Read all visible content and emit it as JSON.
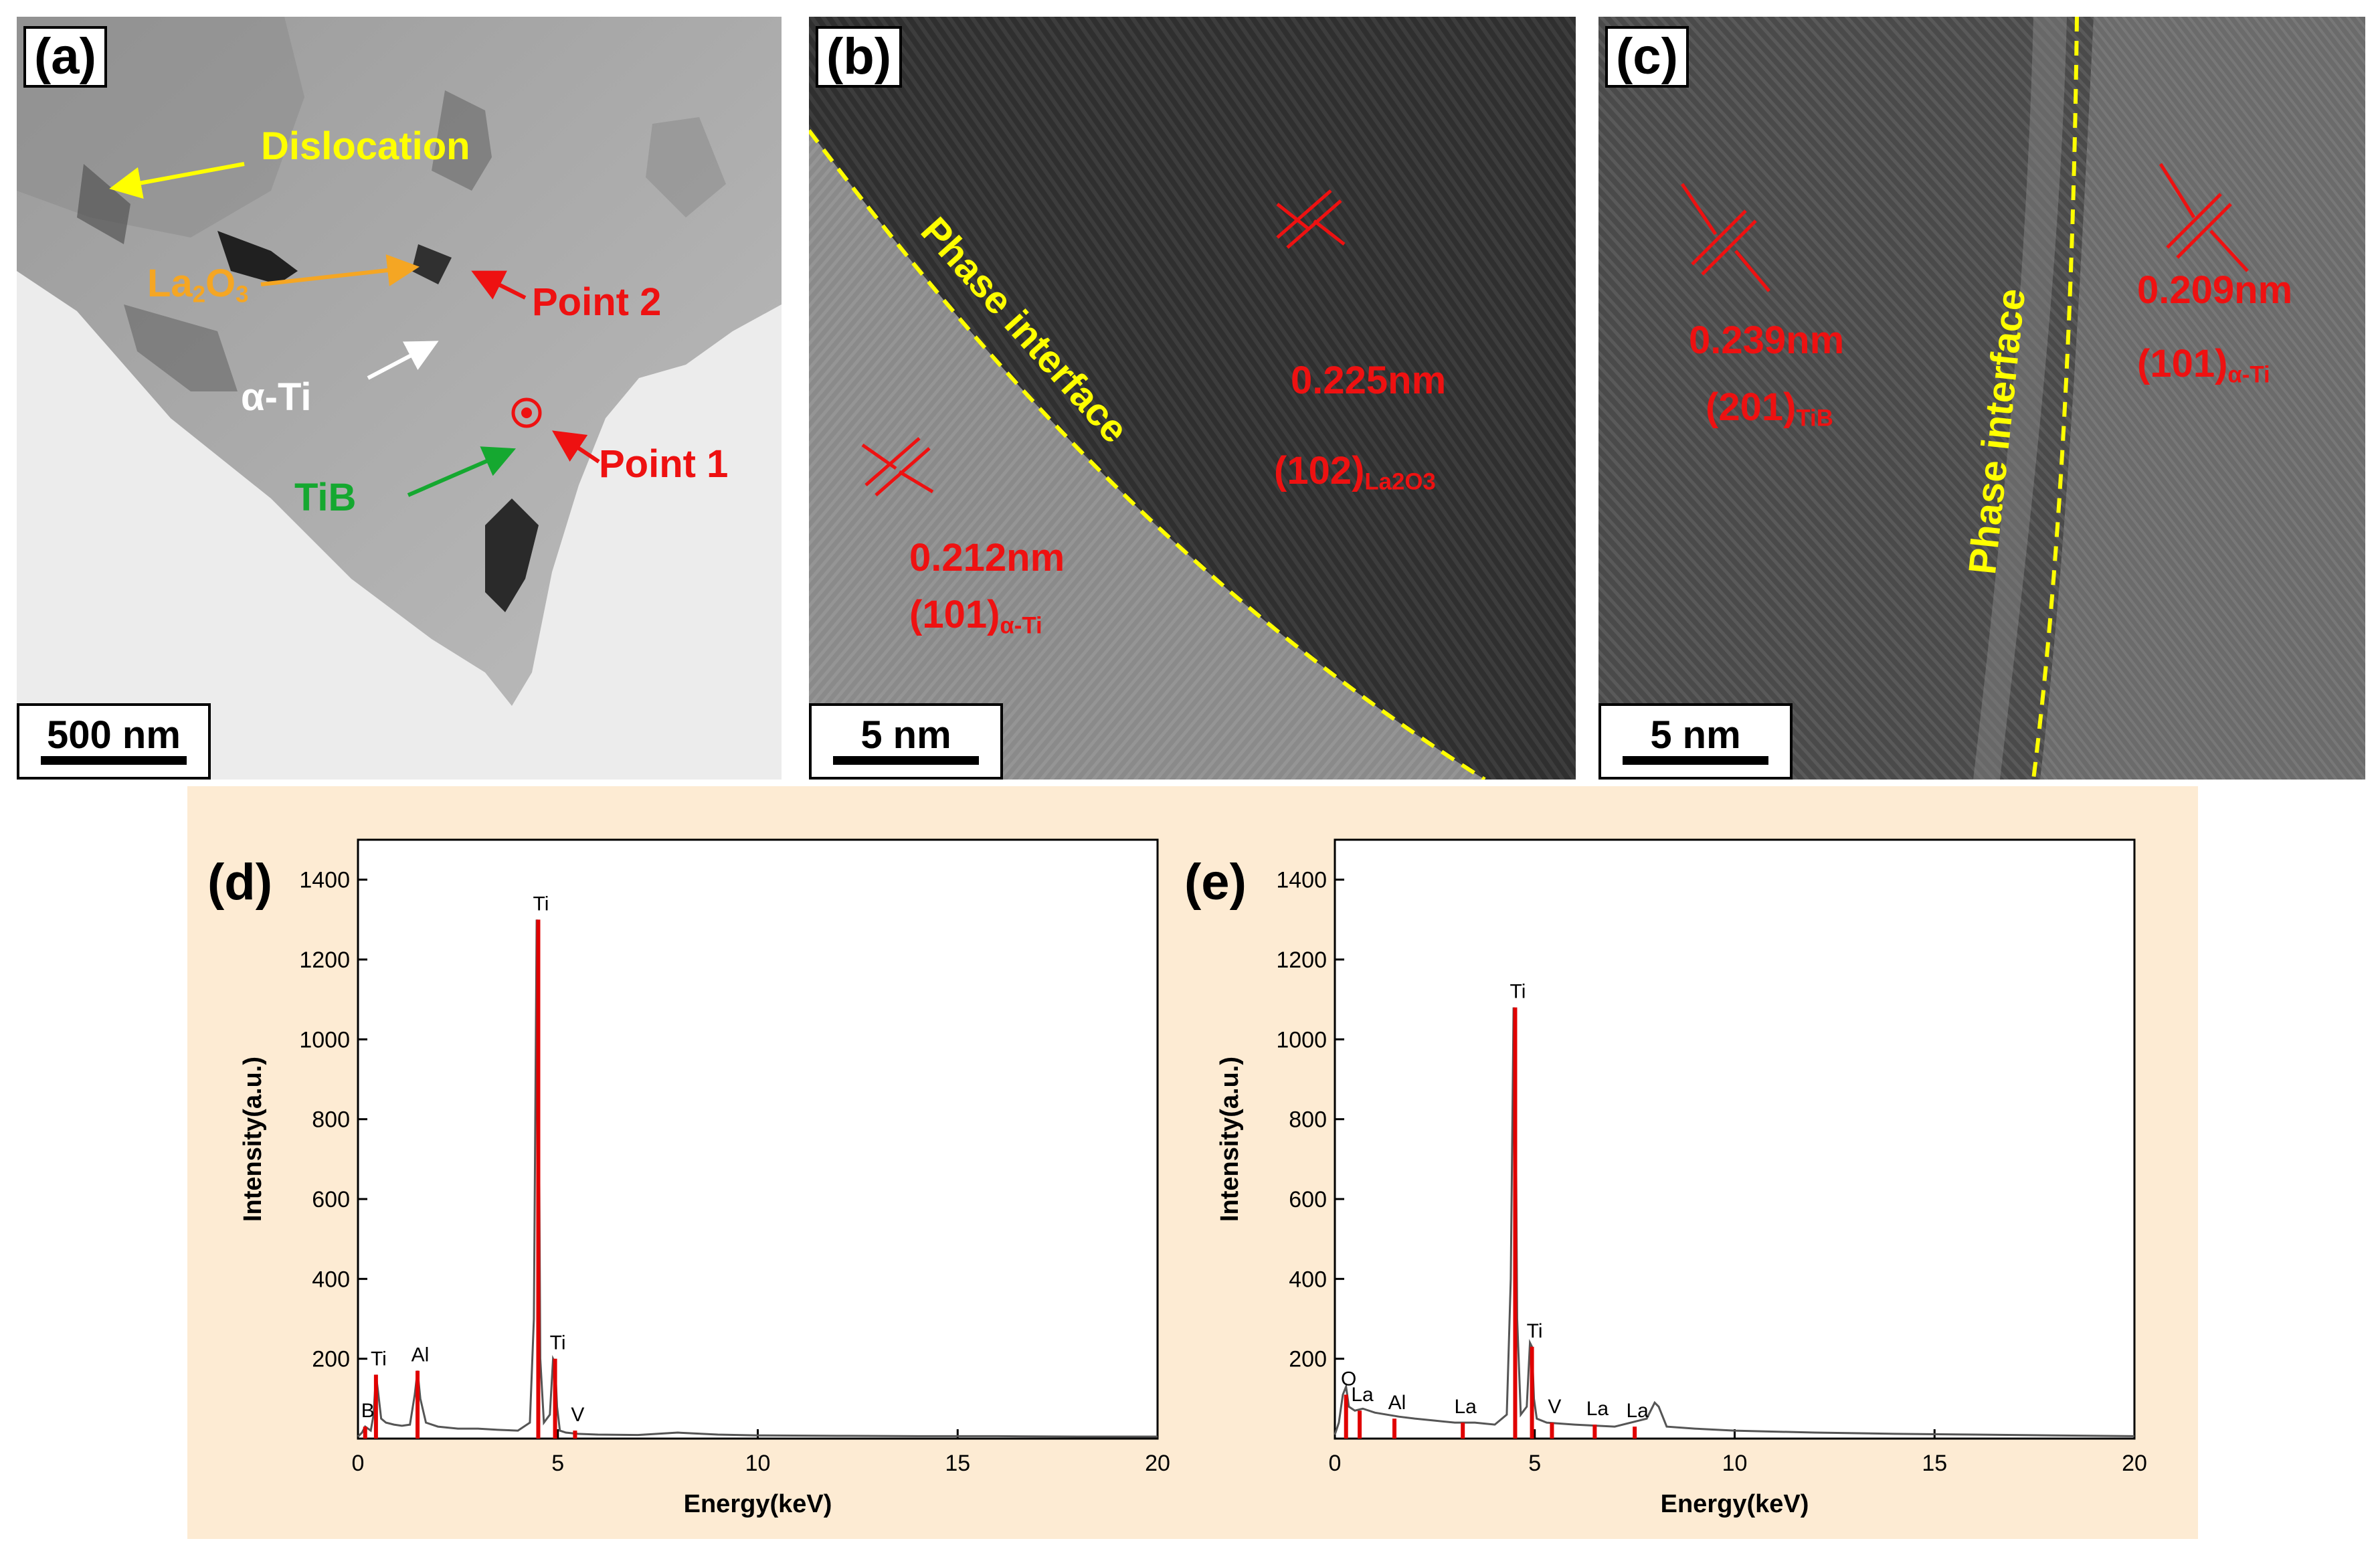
{
  "panel_a": {
    "label": "(a)",
    "scale": "500 nm",
    "annotations": {
      "dislocation": "Dislocation",
      "la2o3_main": "La",
      "la2o3_sub1": "2",
      "la2o3_mid": "O",
      "la2o3_sub2": "3",
      "point2": "Point 2",
      "alpha_ti": "α-Ti",
      "point1": "Point 1",
      "tib": "TiB"
    }
  },
  "panel_b": {
    "label": "(b)",
    "scale": "5 nm",
    "interface": "Phase interface",
    "d1_value": "0.225nm",
    "d1_plane": "(102)",
    "d1_phase": "La2O3",
    "d2_value": "0.212nm",
    "d2_plane": "(101)",
    "d2_phase": "α-Ti"
  },
  "panel_c": {
    "label": "(c)",
    "scale": "5 nm",
    "interface": "Phase interface",
    "d1_value": "0.239nm",
    "d1_plane": "(201)",
    "d1_phase": "TiB",
    "d2_value": "0.209nm",
    "d2_plane": "(101)",
    "d2_phase": "α-Ti"
  },
  "colors": {
    "annotation_red": "#ee1111",
    "interface_yellow": "#ffff00",
    "chart_background": "#fdebd3",
    "spectrum_line": "#555555",
    "peak_marker": "#e00000"
  },
  "chart_data": [
    {
      "type": "line",
      "label": "(d)",
      "xlabel": "Energy(keV)",
      "ylabel": "Intensity(a.u.)",
      "xlim": [
        0,
        20
      ],
      "ylim": [
        0,
        1500
      ],
      "xticks": [
        0,
        5,
        10,
        15,
        20
      ],
      "yticks": [
        200,
        400,
        600,
        800,
        1000,
        1200,
        1400
      ],
      "spectrum": {
        "x": [
          0,
          0.1,
          0.18,
          0.25,
          0.32,
          0.39,
          0.45,
          0.5,
          0.58,
          0.7,
          0.9,
          1.1,
          1.3,
          1.42,
          1.49,
          1.56,
          1.7,
          2.0,
          2.5,
          3.0,
          3.5,
          4.0,
          4.3,
          4.4,
          4.47,
          4.51,
          4.56,
          4.65,
          4.8,
          4.88,
          4.93,
          4.98,
          5.05,
          5.2,
          5.5,
          6.0,
          7.0,
          8.0,
          9.0,
          10.0,
          12.0,
          14.0,
          16.0,
          18.0,
          20.0
        ],
        "y": [
          5,
          15,
          30,
          25,
          20,
          60,
          160,
          120,
          50,
          40,
          35,
          32,
          35,
          110,
          170,
          100,
          40,
          30,
          25,
          25,
          22,
          20,
          40,
          300,
          1300,
          1100,
          200,
          40,
          60,
          200,
          190,
          80,
          20,
          15,
          12,
          10,
          9,
          15,
          10,
          8,
          7,
          6,
          6,
          5,
          5
        ]
      },
      "peaks": [
        {
          "element": "B",
          "x": 0.18,
          "y": 30
        },
        {
          "element": "Ti",
          "x": 0.45,
          "y": 160
        },
        {
          "element": "Al",
          "x": 1.49,
          "y": 170
        },
        {
          "element": "Ti",
          "x": 4.51,
          "y": 1300
        },
        {
          "element": "Ti",
          "x": 4.93,
          "y": 200
        },
        {
          "element": "V",
          "x": 5.43,
          "y": 20
        }
      ]
    },
    {
      "type": "line",
      "label": "(e)",
      "xlabel": "Energy(keV)",
      "ylabel": "Intensity(a.u.)",
      "xlim": [
        0,
        20
      ],
      "ylim": [
        0,
        1500
      ],
      "xticks": [
        0,
        5,
        10,
        15,
        20
      ],
      "yticks": [
        200,
        400,
        600,
        800,
        1000,
        1200,
        1400
      ],
      "spectrum": {
        "x": [
          0,
          0.1,
          0.2,
          0.28,
          0.35,
          0.5,
          0.7,
          1.0,
          1.3,
          1.6,
          2.0,
          2.5,
          3.0,
          3.5,
          4.0,
          4.3,
          4.4,
          4.47,
          4.51,
          4.56,
          4.65,
          4.8,
          4.88,
          4.93,
          4.98,
          5.05,
          5.3,
          6.0,
          7.0,
          7.8,
          8.0,
          8.1,
          8.3,
          9.0,
          10.0,
          12.0,
          14.0,
          16.0,
          18.0,
          20.0
        ],
        "y": [
          10,
          40,
          110,
          130,
          80,
          70,
          75,
          65,
          60,
          55,
          50,
          45,
          40,
          40,
          35,
          60,
          400,
          1080,
          1050,
          300,
          60,
          80,
          240,
          230,
          100,
          50,
          40,
          35,
          30,
          50,
          90,
          80,
          30,
          25,
          20,
          15,
          12,
          10,
          8,
          6
        ]
      },
      "peaks": [
        {
          "element": "O",
          "x": 0.28,
          "y": 110
        },
        {
          "element": "La",
          "x": 0.62,
          "y": 70
        },
        {
          "element": "Al",
          "x": 1.49,
          "y": 50
        },
        {
          "element": "La",
          "x": 3.2,
          "y": 40
        },
        {
          "element": "Ti",
          "x": 4.51,
          "y": 1080
        },
        {
          "element": "Ti",
          "x": 4.93,
          "y": 230
        },
        {
          "element": "V",
          "x": 5.43,
          "y": 40
        },
        {
          "element": "La",
          "x": 6.5,
          "y": 35
        },
        {
          "element": "La",
          "x": 7.5,
          "y": 30
        }
      ]
    }
  ]
}
